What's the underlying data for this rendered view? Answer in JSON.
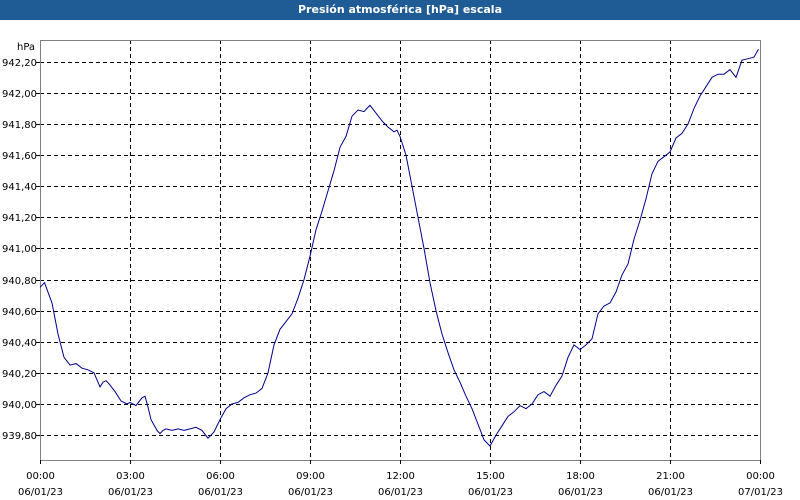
{
  "header": {
    "title": "Presión atmosférica [hPa] escala"
  },
  "chart_data": {
    "type": "line",
    "title": "Presión atmosférica [hPa] escala",
    "ylabel": "hPa",
    "xlabel": "",
    "ylim": [
      939.64,
      942.34
    ],
    "xlim": [
      0,
      24
    ],
    "grid": true,
    "y_ticks": [
      {
        "value": 939.8,
        "label": "939,80"
      },
      {
        "value": 940.0,
        "label": "940,00"
      },
      {
        "value": 940.2,
        "label": "940,20"
      },
      {
        "value": 940.4,
        "label": "940,40"
      },
      {
        "value": 940.6,
        "label": "940,60"
      },
      {
        "value": 940.8,
        "label": "940,80"
      },
      {
        "value": 941.0,
        "label": "941,00"
      },
      {
        "value": 941.2,
        "label": "941,20"
      },
      {
        "value": 941.4,
        "label": "941,40"
      },
      {
        "value": 941.6,
        "label": "941,60"
      },
      {
        "value": 941.8,
        "label": "941,80"
      },
      {
        "value": 942.0,
        "label": "942,00"
      },
      {
        "value": 942.2,
        "label": "942,20"
      }
    ],
    "x_ticks": [
      {
        "value": 0,
        "time": "00:00",
        "date": "06/01/23"
      },
      {
        "value": 3,
        "time": "03:00",
        "date": "06/01/23"
      },
      {
        "value": 6,
        "time": "06:00",
        "date": "06/01/23"
      },
      {
        "value": 9,
        "time": "09:00",
        "date": "06/01/23"
      },
      {
        "value": 12,
        "time": "12:00",
        "date": "06/01/23"
      },
      {
        "value": 15,
        "time": "15:00",
        "date": "06/01/23"
      },
      {
        "value": 18,
        "time": "18:00",
        "date": "06/01/23"
      },
      {
        "value": 21,
        "time": "21:00",
        "date": "06/01/23"
      },
      {
        "value": 24,
        "time": "00:00",
        "date": "07/01/23"
      }
    ],
    "series": [
      {
        "color": "#00008b",
        "x": [
          0.0,
          0.15,
          0.4,
          0.6,
          0.8,
          1.0,
          1.2,
          1.4,
          1.6,
          1.8,
          2.0,
          2.1,
          2.2,
          2.3,
          2.5,
          2.7,
          2.9,
          3.0,
          3.2,
          3.4,
          3.5,
          3.6,
          3.7,
          3.9,
          4.0,
          4.1,
          4.2,
          4.4,
          4.6,
          4.8,
          5.0,
          5.2,
          5.4,
          5.6,
          5.8,
          6.0,
          6.2,
          6.4,
          6.6,
          6.8,
          7.0,
          7.2,
          7.4,
          7.6,
          7.8,
          8.0,
          8.2,
          8.4,
          8.6,
          8.8,
          9.0,
          9.2,
          9.4,
          9.6,
          9.8,
          10.0,
          10.2,
          10.4,
          10.6,
          10.8,
          10.9,
          11.0,
          11.2,
          11.4,
          11.6,
          11.8,
          11.9,
          12.0,
          12.2,
          12.4,
          12.6,
          12.8,
          13.0,
          13.2,
          13.4,
          13.6,
          13.8,
          14.0,
          14.2,
          14.4,
          14.6,
          14.8,
          15.0,
          15.2,
          15.4,
          15.6,
          15.8,
          16.0,
          16.2,
          16.4,
          16.6,
          16.8,
          17.0,
          17.2,
          17.4,
          17.6,
          17.8,
          18.0,
          18.2,
          18.4,
          18.6,
          18.8,
          19.0,
          19.2,
          19.4,
          19.6,
          19.8,
          20.0,
          20.2,
          20.4,
          20.6,
          20.8,
          21.0,
          21.2,
          21.4,
          21.6,
          21.8,
          22.0,
          22.2,
          22.4,
          22.6,
          22.8,
          23.0,
          23.2,
          23.4,
          23.6,
          23.8,
          23.95
        ],
        "y": [
          940.75,
          940.78,
          940.65,
          940.45,
          940.3,
          940.25,
          940.26,
          940.23,
          940.22,
          940.2,
          940.11,
          940.14,
          940.15,
          940.13,
          940.08,
          940.02,
          940.0,
          940.01,
          939.99,
          940.04,
          940.05,
          939.98,
          939.9,
          939.83,
          939.81,
          939.83,
          939.84,
          939.83,
          939.84,
          939.83,
          939.84,
          939.85,
          939.83,
          939.78,
          939.82,
          939.9,
          939.97,
          940.0,
          940.01,
          940.04,
          940.06,
          940.07,
          940.1,
          940.2,
          940.38,
          940.48,
          940.53,
          940.58,
          940.68,
          940.8,
          940.95,
          941.12,
          941.24,
          941.37,
          941.5,
          941.65,
          941.72,
          941.85,
          941.89,
          941.88,
          941.9,
          941.92,
          941.87,
          941.82,
          941.78,
          941.75,
          941.76,
          941.72,
          941.6,
          941.4,
          941.2,
          941.0,
          940.78,
          940.6,
          940.45,
          940.33,
          940.22,
          940.14,
          940.05,
          939.97,
          939.87,
          939.77,
          939.73,
          939.8,
          939.86,
          939.92,
          939.95,
          939.99,
          939.97,
          940.0,
          940.06,
          940.08,
          940.05,
          940.12,
          940.18,
          940.3,
          940.38,
          940.35,
          940.38,
          940.42,
          940.58,
          940.63,
          940.65,
          940.72,
          940.83,
          940.9,
          941.06,
          941.18,
          941.32,
          941.48,
          941.56,
          941.59,
          941.62,
          941.71,
          941.74,
          941.8,
          941.9,
          941.98,
          942.04,
          942.1,
          942.12,
          942.12,
          942.15,
          942.1,
          942.21,
          942.22,
          942.23,
          942.28
        ]
      }
    ]
  }
}
